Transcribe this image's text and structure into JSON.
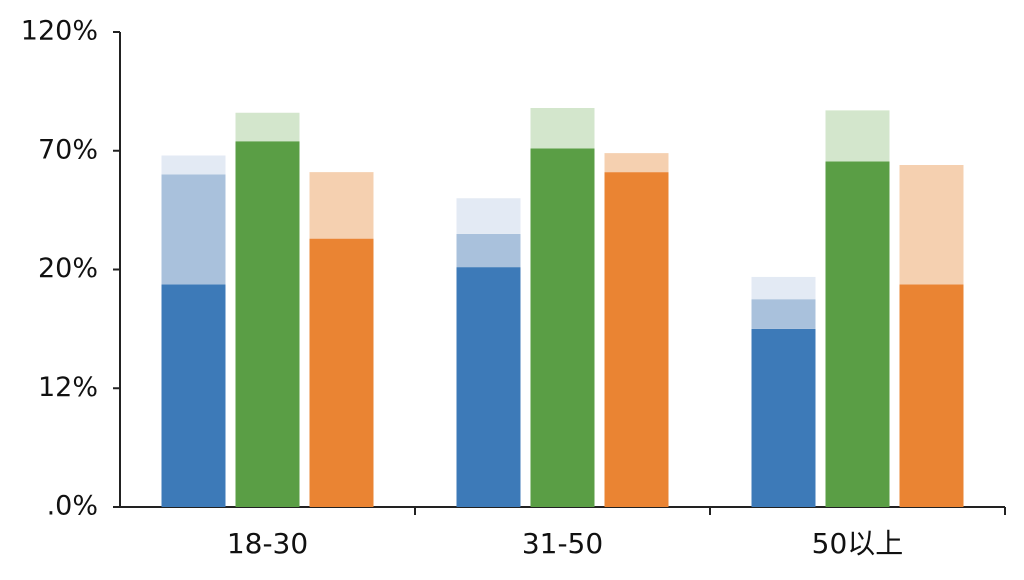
{
  "chart_data": {
    "type": "bar",
    "categories": [
      "18-30",
      "31-50",
      "50以上"
    ],
    "ylim": [
      0,
      120
    ],
    "yticks": [
      {
        "value": 0,
        "label": ".0%"
      },
      {
        "value": 12,
        "label": "12%"
      },
      {
        "value": 20,
        "label": "20%"
      },
      {
        "value": 70,
        "label": "70%"
      },
      {
        "value": 120,
        "label": "120%"
      }
    ],
    "series": [
      {
        "segments": [
          {
            "color": "#3d7ab8",
            "values": [
              19,
              21,
              16
            ]
          },
          {
            "color": "#a9c1dc",
            "values": [
              41,
              14,
              2
            ]
          },
          {
            "color": "#e3eaf4",
            "values": [
              8,
              15,
              1.5
            ]
          }
        ]
      },
      {
        "segments": [
          {
            "color": "#5a9e45",
            "values": [
              74,
              71,
              65.5
            ]
          },
          {
            "color": "#d3e6cc",
            "values": [
              12,
              17,
              21.5
            ]
          }
        ]
      },
      {
        "segments": [
          {
            "color": "#ea8433",
            "values": [
              33,
              61,
              19
            ]
          },
          {
            "color": "#f5d0b0",
            "values": [
              28,
              8,
              45
            ]
          }
        ]
      }
    ]
  }
}
